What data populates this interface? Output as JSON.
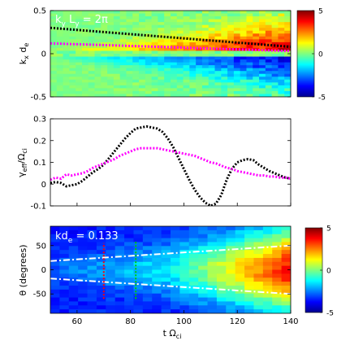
{
  "chart_data": [
    {
      "type": "heatmap",
      "annotation_prefix": "k",
      "annotation_sub_y": "y",
      "annotation_mid": " L",
      "annotation_suffix": " = 2π",
      "ylabel_main": "k",
      "ylabel_sub_x": "x",
      "ylabel_rest": " d",
      "ylabel_sub_e": "e",
      "yticks": [
        "0.5",
        "0",
        "-0.5"
      ],
      "ylim": [
        -0.5,
        0.5
      ],
      "xlim": [
        50,
        140
      ],
      "colorbar": {
        "min": -5,
        "max": 5,
        "ticks": [
          "5",
          "0",
          "-5"
        ],
        "colormap": "jet"
      },
      "overlays": [
        {
          "name": "",
          "color": "#000000",
          "style": "dotted",
          "x": [
            50,
            140
          ],
          "y": [
            0.3,
            0.08
          ]
        },
        {
          "name": "",
          "color": "#ff00ff",
          "style": "dotted",
          "x": [
            50,
            140
          ],
          "y": [
            0.12,
            0.03
          ]
        }
      ]
    },
    {
      "type": "line",
      "ylabel_main": "γ",
      "ylabel_sub": "eff",
      "ylabel_rest": "/Ω",
      "ylabel_sub2": "ci",
      "yticks": [
        "0.3",
        "0.2",
        "0.1",
        "0",
        "-0.1"
      ],
      "ylim": [
        -0.1,
        0.3
      ],
      "xlim": [
        50,
        140
      ],
      "series": [
        {
          "name": "",
          "color": "#000000",
          "style": "dotted",
          "x": [
            50,
            52,
            54,
            56,
            58,
            60,
            62,
            64,
            66,
            68,
            70,
            72,
            74,
            76,
            78,
            80,
            82,
            84,
            86,
            88,
            90,
            92,
            94,
            96,
            98,
            100,
            102,
            104,
            106,
            108,
            110,
            112,
            114,
            116,
            118,
            120,
            122,
            124,
            126,
            128,
            130,
            132,
            134,
            136,
            138,
            140
          ],
          "y": [
            0.005,
            0.01,
            0.005,
            -0.01,
            -0.005,
            0.0,
            0.015,
            0.035,
            0.055,
            0.07,
            0.09,
            0.12,
            0.15,
            0.18,
            0.21,
            0.235,
            0.255,
            0.26,
            0.265,
            0.26,
            0.255,
            0.24,
            0.21,
            0.17,
            0.12,
            0.07,
            0.02,
            -0.025,
            -0.06,
            -0.085,
            -0.1,
            -0.09,
            -0.05,
            0.02,
            0.07,
            0.1,
            0.11,
            0.115,
            0.11,
            0.09,
            0.075,
            0.06,
            0.05,
            0.04,
            0.03,
            0.025
          ]
        },
        {
          "name": "",
          "color": "#ff00ff",
          "style": "dotted",
          "x": [
            50,
            52,
            54,
            56,
            58,
            60,
            62,
            64,
            66,
            68,
            70,
            72,
            74,
            76,
            78,
            80,
            82,
            84,
            86,
            88,
            90,
            92,
            94,
            96,
            98,
            100,
            102,
            104,
            106,
            108,
            110,
            112,
            114,
            116,
            118,
            120,
            122,
            124,
            126,
            128,
            130,
            132,
            134,
            136,
            138,
            140
          ],
          "y": [
            0.02,
            0.03,
            0.025,
            0.045,
            0.04,
            0.045,
            0.05,
            0.06,
            0.075,
            0.085,
            0.095,
            0.105,
            0.115,
            0.13,
            0.14,
            0.15,
            0.16,
            0.165,
            0.165,
            0.165,
            0.165,
            0.16,
            0.155,
            0.15,
            0.145,
            0.14,
            0.135,
            0.13,
            0.12,
            0.11,
            0.1,
            0.095,
            0.085,
            0.075,
            0.07,
            0.06,
            0.055,
            0.05,
            0.045,
            0.04,
            0.04,
            0.035,
            0.035,
            0.03,
            0.03,
            0.025
          ]
        }
      ]
    },
    {
      "type": "heatmap",
      "annotation_prefix": "kd",
      "annotation_sub": "e",
      "annotation_suffix": " = 0.133",
      "ylabel": "θ (degrees)",
      "yticks": [
        "50",
        "0",
        "-50"
      ],
      "ylim": [
        -90,
        90
      ],
      "xlim": [
        50,
        140
      ],
      "xticks": [
        "60",
        "80",
        "100",
        "120",
        "140"
      ],
      "xlabel_main": "t Ω",
      "xlabel_sub": "ci",
      "colorbar": {
        "min": -5,
        "max": 5,
        "ticks": [
          "5",
          "0",
          "-5"
        ],
        "colormap": "jet"
      },
      "overlays": [
        {
          "name": "",
          "color": "#ffffff",
          "style": "dash-dot",
          "x": [
            50,
            140
          ],
          "y": [
            18,
            50
          ]
        },
        {
          "name": "",
          "color": "#ffffff",
          "style": "dash-dot",
          "x": [
            50,
            140
          ],
          "y": [
            -18,
            -50
          ]
        },
        {
          "name": "",
          "color": "#ff0000",
          "style": "dotted",
          "x": [
            70,
            70
          ],
          "y": [
            -60,
            55
          ]
        },
        {
          "name": "",
          "color": "#00cc00",
          "style": "dotted",
          "x": [
            82,
            82
          ],
          "y": [
            -60,
            60
          ]
        }
      ]
    }
  ]
}
